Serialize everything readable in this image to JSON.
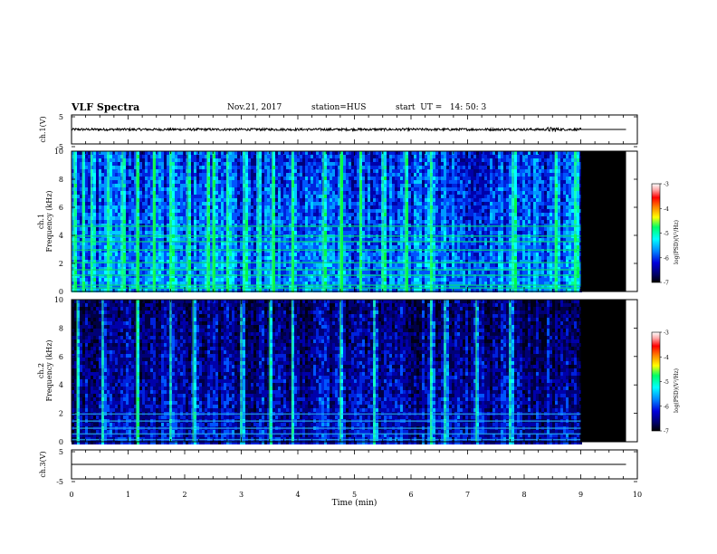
{
  "header": {
    "title": "VLF Spectra",
    "date": "Nov.21, 2017",
    "station": "station=HUS",
    "start": "start  UT =   14: 50: 3"
  },
  "chart_data": [
    {
      "type": "line",
      "ylabel": "ch.1(V)",
      "yticks": [
        "5",
        "-5"
      ],
      "ylim": [
        -5,
        5
      ],
      "xlim": [
        0,
        10
      ],
      "description_values": {
        "mean": 0,
        "noise_amplitude_V": 0.4,
        "data_end_min": 9.0,
        "flat_until_min": 9.8
      }
    },
    {
      "type": "heatmap",
      "ylabel": "ch.1\nFrequency (kHz)",
      "yticks": [
        "0",
        "2",
        "4",
        "6",
        "8",
        "10"
      ],
      "ylim": [
        0,
        10
      ],
      "xlim": [
        0,
        10
      ],
      "data_end_min": 9.0,
      "colorbar": {
        "label": "log(PSD)(V²/Hz)",
        "ticks": [
          "-3",
          "-4",
          "-5",
          "-6",
          "-7"
        ],
        "range": [
          -7,
          -3
        ]
      },
      "strong_bursts_min": [
        0.05,
        0.2,
        0.35,
        0.65,
        0.9,
        1.15,
        1.45,
        1.75,
        2.05,
        2.4,
        2.5,
        2.75,
        3.05,
        3.3,
        3.55,
        3.9,
        4.45,
        4.75,
        5.1,
        5.5,
        5.9,
        6.35,
        7.8,
        8.55,
        8.9
      ]
    },
    {
      "type": "heatmap",
      "ylabel": "ch.2\nFrequency (kHz)",
      "yticks": [
        "0",
        "2",
        "4",
        "6",
        "8",
        "10"
      ],
      "ylim": [
        0,
        10
      ],
      "xlim": [
        0,
        10
      ],
      "data_end_min": 9.0,
      "colorbar": {
        "label": "log(PSD)(V²/Hz)",
        "ticks": [
          "-3",
          "-4",
          "-5",
          "-6",
          "-7"
        ],
        "range": [
          -7,
          -3
        ]
      },
      "strong_bursts_min": [
        0.1,
        0.55,
        1.15,
        1.75,
        2.15,
        3.0,
        3.5,
        3.9,
        4.75,
        5.35,
        6.35,
        6.6,
        7.15,
        7.75
      ]
    },
    {
      "type": "line",
      "ylabel": "ch.3(V)",
      "yticks": [
        "5",
        "-5"
      ],
      "ylim": [
        -5,
        5
      ],
      "xlim": [
        0,
        10
      ],
      "xlabel": "Time  (min)",
      "xticks": [
        "0",
        "1",
        "2",
        "3",
        "4",
        "5",
        "6",
        "7",
        "8",
        "9",
        "10"
      ],
      "description_values": {
        "constant_value_V": 0
      }
    }
  ],
  "colors": {
    "background": "#ffffff",
    "no_data": "#000000",
    "colormap": [
      "#ffffff",
      "#ff9999",
      "#ff0000",
      "#ff9900",
      "#ffff00",
      "#00ff00",
      "#00ffff",
      "#0066ff",
      "#0000cc",
      "#000066",
      "#000000"
    ]
  }
}
